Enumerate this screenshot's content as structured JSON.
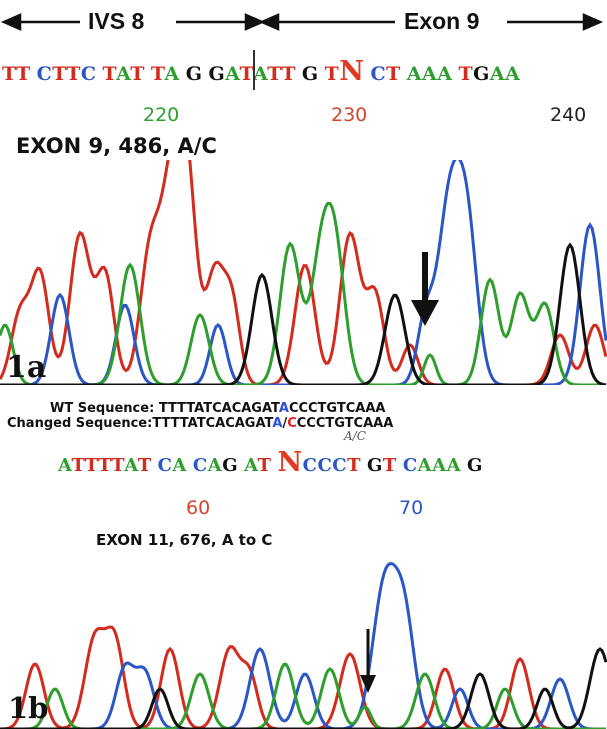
{
  "figure_1a": {
    "region_labels": {
      "left": "IVS 8",
      "right": "Exon 9"
    },
    "sequence": "TTCTTCTATTAGGATATTGTNCTAAATGAA",
    "positions": [
      {
        "label": "220",
        "color": "#2e9e2e"
      },
      {
        "label": "230",
        "color": "#d4452c"
      },
      {
        "label": "240",
        "color": "#222222"
      }
    ],
    "mutation": "EXON 9, 486, A/C",
    "panel_label": "1a"
  },
  "figure_1b": {
    "wt_sequence": {
      "label": "WT Sequence:",
      "prefix": "TTTTATCACAGAT",
      "highlight": "A",
      "suffix": "CCCTGTCAAA"
    },
    "changed_sequence": {
      "label": "Changed Sequence:",
      "prefix": "TTTTATCACAGAT",
      "highlight_a": "A",
      "separator": "/",
      "highlight_c": "C",
      "suffix": "CCCTGTCAAA"
    },
    "call_note": "A/C",
    "sequence": "ATTTTATCACAGATNCCCTGTCAAAG",
    "positions": [
      {
        "label": "60",
        "color": "#d4452c"
      },
      {
        "label": "70",
        "color": "#2a56c6"
      }
    ],
    "mutation": "EXON 11, 676, A to C",
    "panel_label": "1b"
  },
  "colors": {
    "A": "#2e9e2e",
    "C": "#2a56c6",
    "G": "#111111",
    "T": "#d32b1e",
    "N": "#e03a22",
    "arrow": "#111111"
  }
}
